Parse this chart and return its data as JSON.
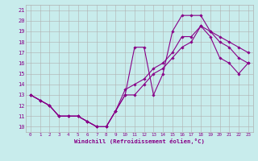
{
  "xlabel": "Windchill (Refroidissement éolien,°C)",
  "background_color": "#c8ecec",
  "grid_color": "#b0b0b0",
  "line_color": "#880088",
  "xlim": [
    -0.5,
    23.5
  ],
  "ylim": [
    9.5,
    21.5
  ],
  "xticks": [
    0,
    1,
    2,
    3,
    4,
    5,
    6,
    7,
    8,
    9,
    10,
    11,
    12,
    13,
    14,
    15,
    16,
    17,
    18,
    19,
    20,
    21,
    22,
    23
  ],
  "yticks": [
    10,
    11,
    12,
    13,
    14,
    15,
    16,
    17,
    18,
    19,
    20,
    21
  ],
  "line1_x": [
    0,
    1,
    2,
    3,
    4,
    5,
    6,
    7,
    8,
    9,
    10,
    11,
    12,
    13,
    14,
    15,
    16,
    17,
    18,
    19,
    20,
    21,
    22,
    23
  ],
  "line1_y": [
    13.0,
    12.5,
    12.0,
    11.0,
    11.0,
    11.0,
    10.5,
    10.0,
    10.0,
    11.5,
    13.0,
    17.5,
    17.5,
    13.0,
    15.0,
    19.0,
    20.5,
    20.5,
    20.5,
    19.0,
    18.5,
    18.0,
    17.5,
    17.0
  ],
  "line2_x": [
    0,
    1,
    2,
    3,
    4,
    5,
    6,
    7,
    8,
    9,
    10,
    11,
    12,
    13,
    14,
    15,
    16,
    17,
    18,
    19,
    20,
    21,
    22,
    23
  ],
  "line2_y": [
    13.0,
    12.5,
    12.0,
    11.0,
    11.0,
    11.0,
    10.5,
    10.0,
    10.0,
    11.5,
    13.0,
    13.0,
    14.0,
    15.0,
    15.5,
    16.5,
    17.5,
    18.0,
    19.5,
    19.0,
    18.0,
    17.5,
    16.5,
    16.0
  ],
  "line3_x": [
    0,
    1,
    2,
    3,
    4,
    5,
    6,
    7,
    8,
    9,
    10,
    11,
    12,
    13,
    14,
    15,
    16,
    17,
    18,
    19,
    20,
    21,
    22,
    23
  ],
  "line3_y": [
    13.0,
    12.5,
    12.0,
    11.0,
    11.0,
    11.0,
    10.5,
    10.0,
    10.0,
    11.5,
    13.5,
    14.0,
    14.5,
    15.5,
    16.0,
    17.0,
    18.5,
    18.5,
    19.5,
    18.5,
    16.5,
    16.0,
    15.0,
    16.0
  ]
}
